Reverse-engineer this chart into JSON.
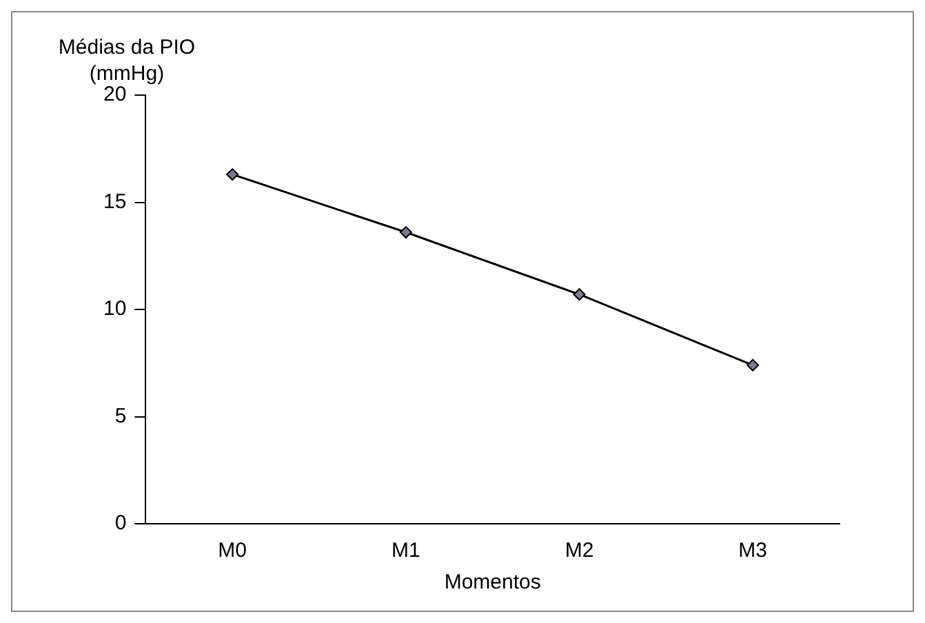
{
  "chart_data": {
    "type": "line",
    "ylabel": "Médias da PIO (mmHg)",
    "xlabel": "Momentos",
    "categories": [
      "M0",
      "M1",
      "M2",
      "M3"
    ],
    "series": [
      {
        "color": "#000000",
        "values": [
          16.3,
          13.6,
          10.7,
          7.4
        ]
      }
    ],
    "ylim": [
      0,
      20
    ],
    "yticks": [
      0,
      5,
      10,
      15,
      20
    ],
    "grid": false,
    "legend": false,
    "marker": "diamond",
    "line_style": "solid"
  }
}
